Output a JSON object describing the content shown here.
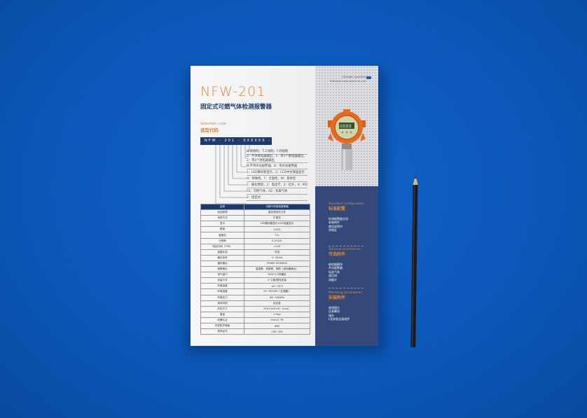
{
  "brochure": {
    "title": "NFW-201",
    "subtitle": "固定式可燃气体检测报警器",
    "selection_en": "Selection code",
    "selection_cn": "选型代码",
    "code": "NFW - 201 - XXXXXX -气体",
    "options": [
      "O:两线制，T:三线制，F:四线制",
      "0：不带继电器输出，1：带1个继电器输出，",
      "2：带2个继电器输出",
      "N:不带声光报警器，B：带声光报警器",
      "1：LED数码管显示，2：LCD中文液晶显示",
      "H：特殊性，F：全面性，W：基本型",
      "1：催化燃烧，2：电化学，2：红外，4：PID",
      "01：可燃气体，02：有毒气体",
      "2：固定式"
    ],
    "table": {
      "header": [
        "名称",
        "可燃气体检测报警器"
      ],
      "rows": [
        [
          "检测原理",
          "催化燃烧式元件"
        ],
        [
          "采样方式",
          "扩散式"
        ],
        [
          "显示",
          "LED数码管显示/LCD液晶显示"
        ],
        [
          "精度",
          "2%FS"
        ],
        [
          "重复性",
          "1%"
        ],
        [
          "分辨率",
          "0.1%LEL"
        ],
        [
          "响应时间（T90）",
          "<15S"
        ],
        [
          "温度补偿",
          "可选"
        ],
        [
          "输出信号",
          "4~20mA"
        ],
        [
          "通讯输出",
          "RS485 MODBUS"
        ],
        [
          "报警输出",
          "高报警、低报警、故障（继电器输出）"
        ],
        [
          "电气接口",
          "M20*1.5内螺纹"
        ],
        [
          "安装方式",
          "2\"立管/壁挂安装"
        ],
        [
          "环境温度",
          "-40~70℃"
        ],
        [
          "环境湿度",
          "20~95%RH（无凝露）"
        ],
        [
          "环境压力",
          "86~106kPa"
        ],
        [
          "壳体材质",
          "铝合金"
        ],
        [
          "外形尺寸",
          "200×140×92（mm）"
        ],
        [
          "重量",
          "2.5kg"
        ],
        [
          "防爆认证",
          "Exd IIC T6"
        ],
        [
          "外壳防护等级",
          "IP65"
        ],
        [
          "其他证书",
          "CMC CPA"
        ]
      ]
    },
    "company": [
      "Chengdu Southern",
      "Electrical Instrument Co.,Ltd"
    ],
    "sections": [
      {
        "en": "Standard configuration",
        "cn": "标准配置",
        "items": [
          "检测报警器主机",
          "安装附件",
          "使用说明书",
          "合格证"
        ]
      },
      {
        "en": "Optional accessories",
        "cn": "可选附件",
        "items": [
          "继电器模块",
          "声光报警器",
          "标准气体",
          "减压阀",
          "流量计"
        ]
      },
      {
        "en": "Mounting accessories",
        "cn": "安装附件",
        "items": [
          "穿线接头",
          "压紧螺母",
          "堵头",
          "L型安装支架组件"
        ]
      }
    ]
  },
  "colors": {
    "background": "#0b57b8",
    "navy": "#34497a",
    "accent": "#d98a3a",
    "device": "#e8691f"
  }
}
